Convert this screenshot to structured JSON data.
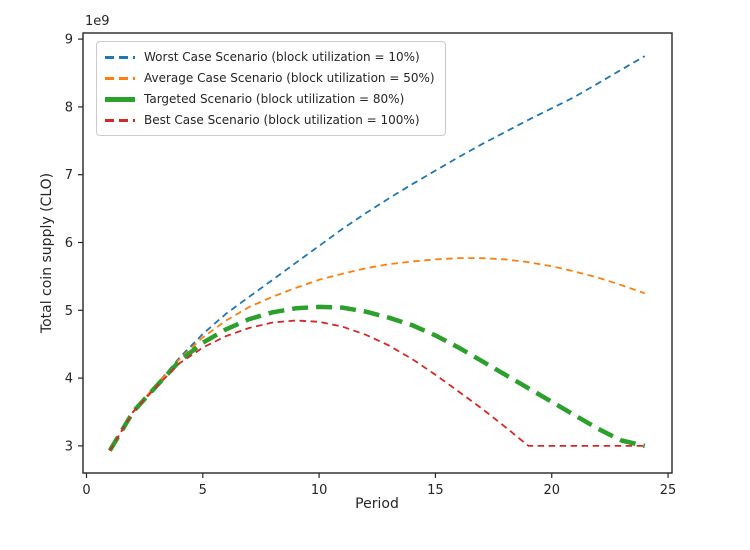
{
  "figure": {
    "background": "#ffffff",
    "frame_color": "#262626"
  },
  "chart_data": {
    "type": "line",
    "title": "",
    "xlabel": "Period",
    "ylabel": "Total coin supply (CLO)",
    "y_offset_label": "1e9",
    "units": "values are in 1e9 CLO",
    "grid": false,
    "legend_position": "upper-left",
    "xlim": [
      -0.15,
      25.17
    ],
    "ylim": [
      2.6,
      9.09
    ],
    "xticks": [
      0,
      5,
      10,
      15,
      20,
      25
    ],
    "yticks": [
      3,
      4,
      5,
      6,
      7,
      8,
      9
    ],
    "x": [
      1,
      2,
      3,
      4,
      5,
      6,
      7,
      8,
      9,
      10,
      11,
      12,
      13,
      14,
      15,
      16,
      17,
      18,
      19,
      20,
      21,
      22,
      23,
      24
    ],
    "series": [
      {
        "name": "Worst Case Scenario (block utilization = 10%)",
        "color": "#1f77b4",
        "style": "dashed",
        "width": 1.8,
        "values": [
          2.93,
          3.5,
          3.9,
          4.3,
          4.65,
          4.95,
          5.2,
          5.45,
          5.7,
          5.95,
          6.2,
          6.43,
          6.65,
          6.86,
          7.06,
          7.26,
          7.45,
          7.63,
          7.81,
          7.98,
          8.15,
          8.35,
          8.55,
          8.75
        ]
      },
      {
        "name": "Average Case Scenario (block utilization = 50%)",
        "color": "#ff7f0e",
        "style": "dashed",
        "width": 1.8,
        "values": [
          2.93,
          3.5,
          3.9,
          4.28,
          4.6,
          4.85,
          5.05,
          5.2,
          5.33,
          5.45,
          5.54,
          5.62,
          5.68,
          5.72,
          5.75,
          5.77,
          5.77,
          5.75,
          5.71,
          5.65,
          5.57,
          5.48,
          5.37,
          5.25
        ]
      },
      {
        "name": "Targeted Scenario (block utilization = 80%)",
        "color": "#2ca02c",
        "style": "dashed-thick",
        "width": 4.5,
        "values": [
          2.93,
          3.5,
          3.88,
          4.25,
          4.52,
          4.72,
          4.87,
          4.97,
          5.03,
          5.05,
          5.04,
          4.98,
          4.89,
          4.78,
          4.63,
          4.45,
          4.25,
          4.05,
          3.85,
          3.65,
          3.45,
          3.25,
          3.08,
          3.0
        ]
      },
      {
        "name": "Best Case Scenario (block utilization = 100%)",
        "color": "#d62728",
        "style": "dashed",
        "width": 1.8,
        "values": [
          2.93,
          3.5,
          3.87,
          4.22,
          4.45,
          4.62,
          4.74,
          4.82,
          4.85,
          4.83,
          4.76,
          4.64,
          4.48,
          4.28,
          4.05,
          3.8,
          3.55,
          3.28,
          3.0,
          3.0,
          3.0,
          3.0,
          3.0,
          3.0
        ]
      }
    ]
  }
}
